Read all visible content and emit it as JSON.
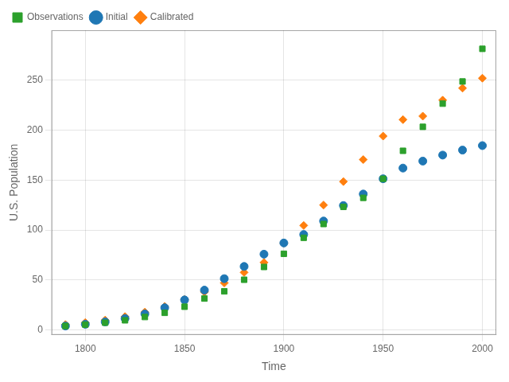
{
  "chart_data": {
    "type": "scatter",
    "xlabel": "Time",
    "ylabel": "U.S. Population",
    "x": [
      1790,
      1800,
      1810,
      1820,
      1830,
      1840,
      1850,
      1860,
      1870,
      1880,
      1890,
      1900,
      1910,
      1920,
      1930,
      1940,
      1950,
      1960,
      1970,
      1980,
      1990,
      2000
    ],
    "series": [
      {
        "name": "Observations",
        "color": "#2ca02c",
        "marker": "square",
        "values": [
          3.9,
          5.3,
          7.2,
          9.6,
          12.9,
          17.1,
          23.2,
          31.4,
          38.6,
          50.2,
          63.0,
          76.2,
          92.2,
          106.0,
          123.2,
          132.2,
          151.3,
          179.3,
          203.3,
          226.5,
          248.7,
          281.4
        ]
      },
      {
        "name": "Initial",
        "color": "#1f77b4",
        "marker": "circle",
        "values": [
          3.9,
          5.6,
          8.0,
          11.4,
          16.0,
          22.2,
          30.0,
          39.8,
          51.3,
          63.5,
          75.8,
          87.0,
          95.5,
          109.0,
          124.5,
          136.0,
          151.3,
          162.0,
          169.0,
          175.0,
          180.0,
          184.5
        ]
      },
      {
        "name": "Calibrated",
        "color": "#ff7f0e",
        "marker": "diamond",
        "values": [
          5.3,
          7.3,
          9.8,
          13.3,
          17.8,
          23.5,
          30.5,
          38.0,
          47.0,
          57.5,
          67.5,
          87.0,
          104.5,
          125.0,
          148.5,
          170.5,
          194.0,
          210.5,
          214.0,
          230.0,
          242.0,
          252.0
        ]
      }
    ],
    "xlim": [
      1783,
      2007
    ],
    "ylim": [
      -5,
      300
    ],
    "xticks": [
      1800,
      1850,
      1900,
      1950,
      2000
    ],
    "yticks": [
      0,
      50,
      100,
      150,
      200,
      250
    ],
    "grid": true,
    "legend": "upper left"
  }
}
